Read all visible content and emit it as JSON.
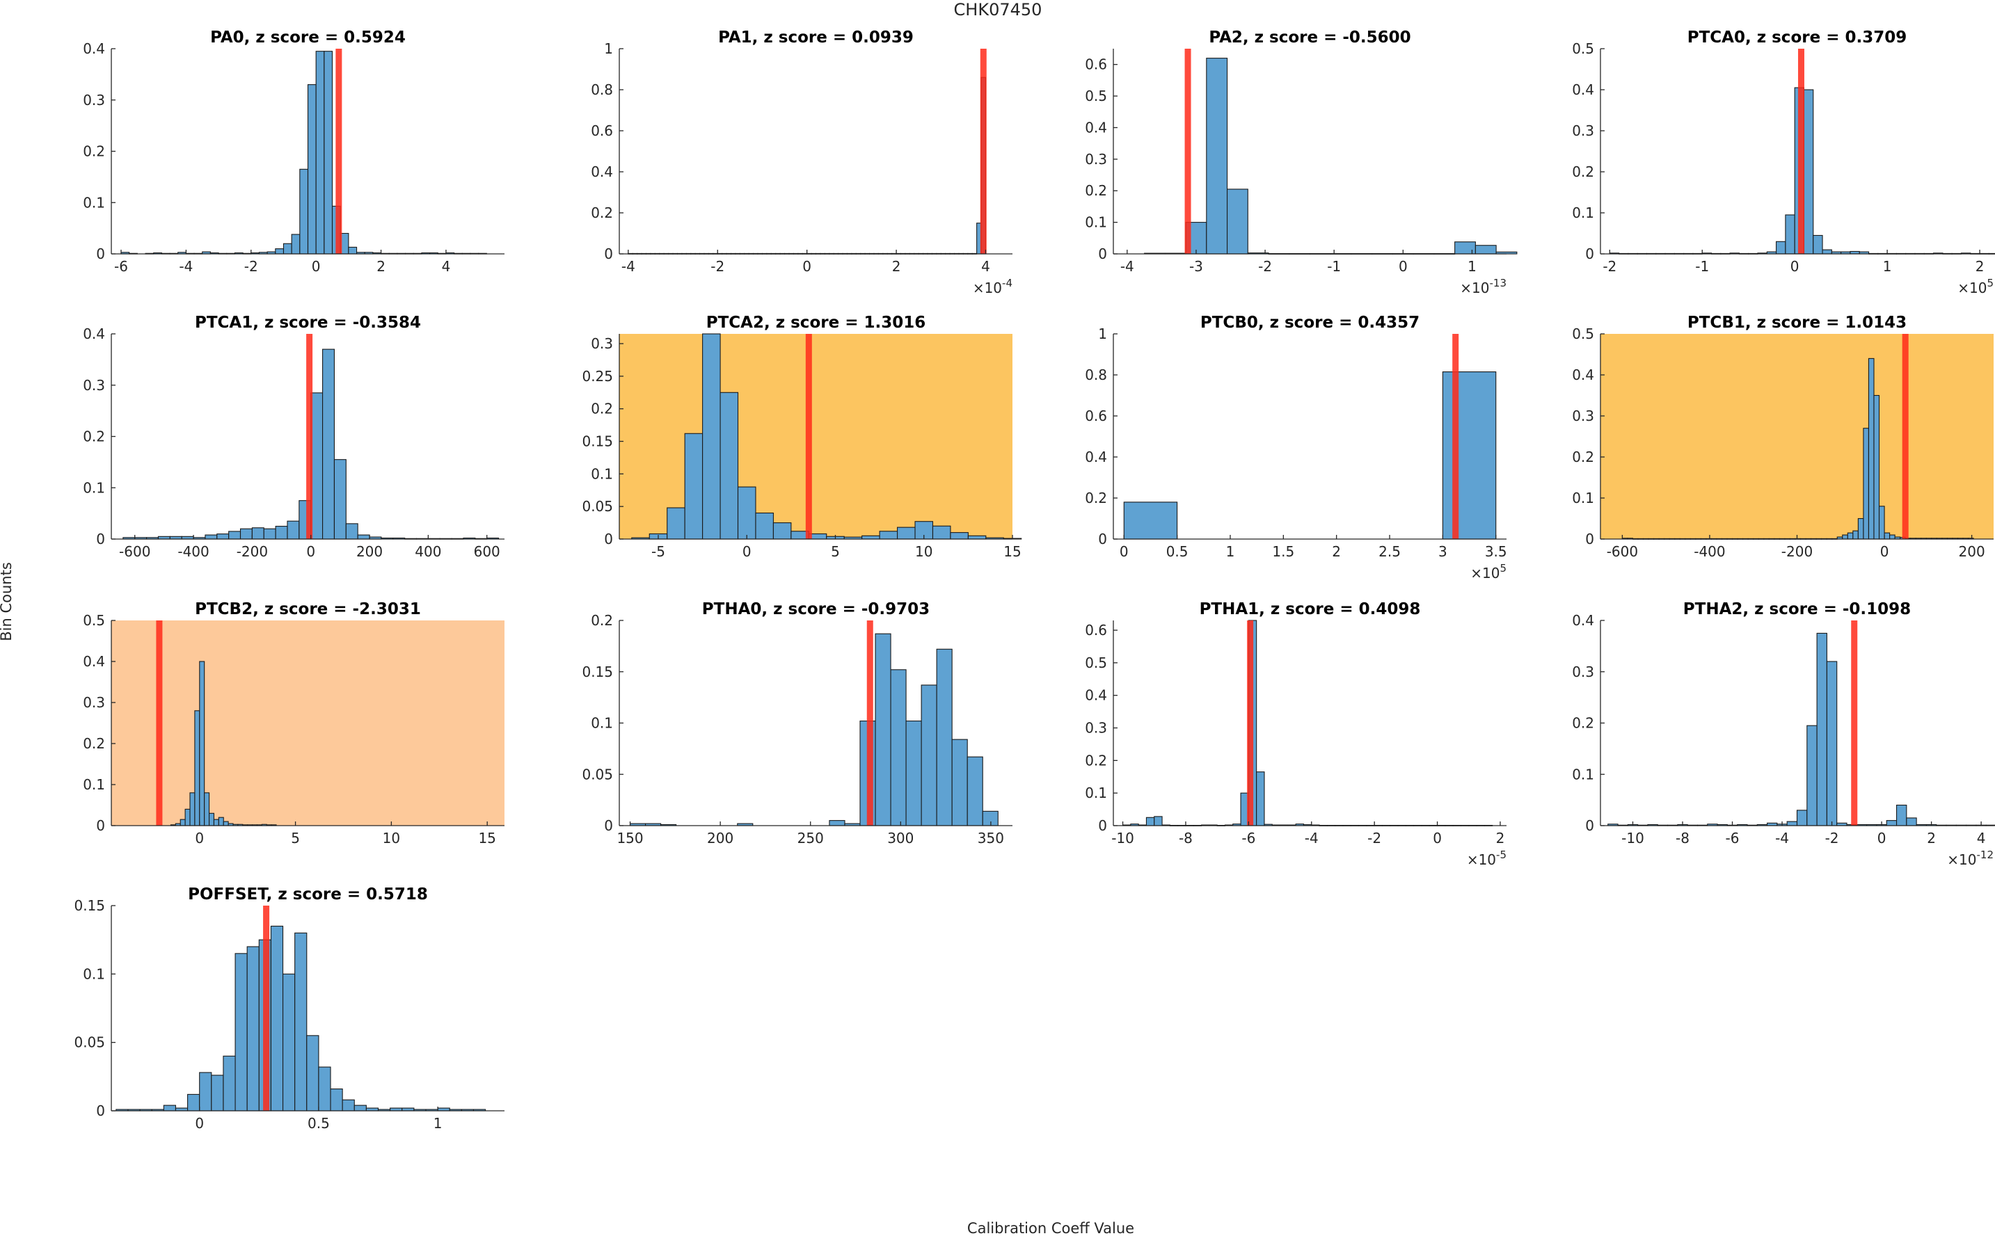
{
  "figure": {
    "title": "CHK07450",
    "ylabel": "Bin Counts",
    "xlabel": "Calibration Coeff Value"
  },
  "colors": {
    "bar": "#5fa2d2",
    "bar_edge": "#1a1a1a",
    "marker": "#ff2a1a",
    "flag_warn": "#fcc560",
    "flag_alert": "#fdc99a"
  },
  "chart_data": [
    {
      "type": "bar",
      "title": "PA0, z score = 0.5924",
      "xlim": [
        -6.3,
        5.8
      ],
      "ylim": [
        0,
        0.4
      ],
      "xticks": [
        -6,
        -4,
        -2,
        0,
        2,
        4
      ],
      "xtick_labels": [
        "-6",
        "-4",
        "-2",
        "0",
        "2",
        "4"
      ],
      "yticks": [
        0,
        0.1,
        0.2,
        0.3,
        0.4
      ],
      "ytick_labels": [
        "0",
        "0.1",
        "0.2",
        "0.3",
        "0.4"
      ],
      "bin_start": -6.0,
      "bin_width": 0.25,
      "values": [
        0.003,
        0.001,
        0,
        0.001,
        0.002,
        0.001,
        0.001,
        0.003,
        0.001,
        0.001,
        0.004,
        0.002,
        0.001,
        0.001,
        0.002,
        0.001,
        0.002,
        0.003,
        0.004,
        0.01,
        0.02,
        0.038,
        0.165,
        0.33,
        0.395,
        0.395,
        0.093,
        0.04,
        0.013,
        0.003,
        0.003,
        0.002,
        0.001,
        0.001,
        0.001,
        0.001,
        0.001,
        0.002,
        0.002,
        0.001,
        0.002,
        0.001,
        0.001,
        0.001,
        0.001
      ],
      "marker": 0.7,
      "highlight": null,
      "exponent": ""
    },
    {
      "type": "bar",
      "title": "PA1, z score = 0.0939",
      "xlim": [
        -4.2,
        4.6
      ],
      "ylim": [
        0,
        1
      ],
      "xticks": [
        -4,
        -2,
        0,
        2,
        4
      ],
      "xtick_labels": [
        "-4",
        "-2",
        "0",
        "2",
        "4"
      ],
      "yticks": [
        0,
        0.2,
        0.4,
        0.6,
        0.8,
        1
      ],
      "ytick_labels": [
        "0",
        "0.2",
        "0.4",
        "0.6",
        "0.8",
        "1"
      ],
      "bin_start": -4.0,
      "bin_width": 0.1,
      "values": [
        0.002,
        0.002,
        0.002,
        0.002,
        0.002,
        0.002,
        0.002,
        0.002,
        0.002,
        0.002,
        0.002,
        0.002,
        0.002,
        0.002,
        0.002,
        0.002,
        0.002,
        0.002,
        0.002,
        0.002,
        0.002,
        0.002,
        0.002,
        0.002,
        0.002,
        0.002,
        0.002,
        0.002,
        0.002,
        0.002,
        0.002,
        0.002,
        0.002,
        0.002,
        0.002,
        0.002,
        0.002,
        0.002,
        0.002,
        0.002,
        0.002,
        0.002,
        0.002,
        0.002,
        0.002,
        0.002,
        0.002,
        0.002,
        0.002,
        0.002,
        0.002,
        0.002,
        0.002,
        0.002,
        0.002,
        0.002,
        0.002,
        0.002,
        0.002,
        0.002,
        0.002,
        0.002,
        0.002,
        0.002,
        0.002,
        0.002,
        0.002,
        0.002,
        0.002,
        0.002,
        0.002,
        0.002,
        0.002,
        0.002,
        0.002,
        0.002,
        0.002,
        0.002,
        0.15,
        0.86
      ],
      "marker": 3.95,
      "highlight": null,
      "exponent": "-4"
    },
    {
      "type": "bar",
      "title": "PA2, z score = -0.5600",
      "xlim": [
        -4.2,
        1.5
      ],
      "ylim": [
        0,
        0.65
      ],
      "xticks": [
        -4,
        -3,
        -2,
        -1,
        0,
        1
      ],
      "xtick_labels": [
        "-4",
        "-3",
        "-2",
        "-1",
        "0",
        "1"
      ],
      "yticks": [
        0,
        0.1,
        0.2,
        0.3,
        0.4,
        0.5,
        0.6
      ],
      "ytick_labels": [
        "0",
        "0.1",
        "0.2",
        "0.3",
        "0.4",
        "0.5",
        "0.6"
      ],
      "bin_start": -3.75,
      "bin_width": 0.3,
      "values": [
        0.002,
        0.002,
        0.1,
        0.62,
        0.205,
        0.003,
        0.001,
        0.001,
        0.001,
        0.001,
        0.001,
        0.001,
        0.001,
        0.001,
        0.001,
        0.038,
        0.027,
        0.006
      ],
      "marker": -3.12,
      "highlight": null,
      "exponent": "-13"
    },
    {
      "type": "bar",
      "title": "PTCA0, z score = 0.3709",
      "xlim": [
        -2.1,
        2.15
      ],
      "ylim": [
        0,
        0.5
      ],
      "xticks": [
        -2,
        -1,
        0,
        1,
        2
      ],
      "xtick_labels": [
        "-2",
        "-1",
        "0",
        "1",
        "2"
      ],
      "yticks": [
        0,
        0.1,
        0.2,
        0.3,
        0.4,
        0.5
      ],
      "ytick_labels": [
        "0",
        "0.1",
        "0.2",
        "0.3",
        "0.4",
        "0.5"
      ],
      "bin_start": -2.0,
      "bin_width": 0.1,
      "values": [
        0.002,
        0.001,
        0.001,
        0.001,
        0.001,
        0.001,
        0.001,
        0.001,
        0.001,
        0.001,
        0.002,
        0.001,
        0.001,
        0.002,
        0.001,
        0.001,
        0.002,
        0.005,
        0.03,
        0.095,
        0.405,
        0.4,
        0.045,
        0.01,
        0.005,
        0.005,
        0.006,
        0.005,
        0.001,
        0.001,
        0.001,
        0.001,
        0.001,
        0.001,
        0.001,
        0.002,
        0.001,
        0.001,
        0.002,
        0.001,
        0.001,
        0.001
      ],
      "marker": 0.07,
      "highlight": null,
      "exponent": "5"
    },
    {
      "type": "bar",
      "title": "PTCA1, z score = -0.3584",
      "xlim": [
        -680,
        660
      ],
      "ylim": [
        0,
        0.4
      ],
      "xticks": [
        -600,
        -400,
        -200,
        0,
        200,
        400,
        600
      ],
      "xtick_labels": [
        "-600",
        "-400",
        "-200",
        "0",
        "200",
        "400",
        "600"
      ],
      "yticks": [
        0,
        0.1,
        0.2,
        0.3,
        0.4
      ],
      "ytick_labels": [
        "0",
        "0.1",
        "0.2",
        "0.3",
        "0.4"
      ],
      "bin_start": -640,
      "bin_width": 40,
      "values": [
        0.003,
        0.003,
        0.003,
        0.005,
        0.005,
        0.005,
        0.003,
        0.008,
        0.01,
        0.015,
        0.02,
        0.022,
        0.02,
        0.025,
        0.035,
        0.075,
        0.285,
        0.37,
        0.155,
        0.03,
        0.008,
        0.004,
        0.002,
        0.002,
        0.001,
        0.001,
        0.001,
        0.001,
        0.001,
        0.002,
        0.001,
        0.002
      ],
      "marker": -5,
      "highlight": null,
      "exponent": ""
    },
    {
      "type": "bar",
      "title": "PTCA2, z score = 1.3016",
      "xlim": [
        -7.2,
        15
      ],
      "ylim": [
        0,
        0.315
      ],
      "xticks": [
        -5,
        0,
        5,
        10,
        15
      ],
      "xtick_labels": [
        "-5",
        "0",
        "5",
        "10",
        "15"
      ],
      "yticks": [
        0,
        0.05,
        0.1,
        0.15,
        0.2,
        0.25,
        0.3
      ],
      "ytick_labels": [
        "0",
        "0.05",
        "0.1",
        "0.15",
        "0.2",
        "0.25",
        "0.3"
      ],
      "bin_start": -6.5,
      "bin_width": 1.0,
      "values": [
        0.002,
        0.008,
        0.048,
        0.162,
        0.315,
        0.225,
        0.08,
        0.04,
        0.025,
        0.012,
        0.008,
        0.004,
        0.003,
        0.005,
        0.012,
        0.018,
        0.027,
        0.02,
        0.01,
        0.005,
        0.002,
        0.001
      ],
      "marker": 3.5,
      "highlight": "warn",
      "exponent": ""
    },
    {
      "type": "bar",
      "title": "PTCB0, z score = 0.4357",
      "xlim": [
        -0.1,
        3.6
      ],
      "ylim": [
        0,
        1
      ],
      "xticks": [
        0,
        0.5,
        1,
        1.5,
        2,
        2.5,
        3,
        3.5
      ],
      "xtick_labels": [
        "0",
        "0.5",
        "1",
        "1.5",
        "2",
        "2.5",
        "3",
        "3.5"
      ],
      "yticks": [
        0,
        0.2,
        0.4,
        0.6,
        0.8,
        1
      ],
      "ytick_labels": [
        "0",
        "0.2",
        "0.4",
        "0.6",
        "0.8",
        "1"
      ],
      "bin_start": 0,
      "bin_width": 0.5,
      "values": [
        0.18,
        0,
        0,
        0,
        0,
        0,
        0.815
      ],
      "marker": 3.12,
      "highlight": null,
      "exponent": "5"
    },
    {
      "type": "bar",
      "title": "PTCB1, z score = 1.0143",
      "xlim": [
        -650,
        250
      ],
      "ylim": [
        0,
        0.5
      ],
      "xticks": [
        -600,
        -400,
        -200,
        0,
        200
      ],
      "xtick_labels": [
        "-600",
        "-400",
        "-200",
        "0",
        "200"
      ],
      "yticks": [
        0,
        0.1,
        0.2,
        0.3,
        0.4,
        0.5
      ],
      "ytick_labels": [
        "0",
        "0.1",
        "0.2",
        "0.3",
        "0.4",
        "0.5"
      ],
      "bin_start": -600,
      "bin_width": 12,
      "values": [
        0.002,
        0.002,
        0.001,
        0.001,
        0.001,
        0.001,
        0.001,
        0.001,
        0.001,
        0.001,
        0.001,
        0.001,
        0.001,
        0.001,
        0.001,
        0.001,
        0.001,
        0.001,
        0.001,
        0.001,
        0.001,
        0.001,
        0.001,
        0.001,
        0.001,
        0.001,
        0.001,
        0.001,
        0.001,
        0.001,
        0.001,
        0.001,
        0.001,
        0.001,
        0.001,
        0.001,
        0.001,
        0.001,
        0.001,
        0.001,
        0.001,
        0.005,
        0.01,
        0.015,
        0.02,
        0.05,
        0.27,
        0.44,
        0.35,
        0.08,
        0.015,
        0.01,
        0.005,
        0.004,
        0.002,
        0.002,
        0.002,
        0.002,
        0.002,
        0.002,
        0.002,
        0.002,
        0.002,
        0.002,
        0.002,
        0.002,
        0.002
      ],
      "marker": 48,
      "highlight": "warn",
      "exponent": ""
    },
    {
      "type": "bar",
      "title": "PTCB2, z score = -2.3031",
      "xlim": [
        -4.6,
        15.9
      ],
      "ylim": [
        0,
        0.5
      ],
      "xticks": [
        0,
        5,
        10,
        15
      ],
      "xtick_labels": [
        "0",
        "5",
        "10",
        "15"
      ],
      "yticks": [
        0,
        0.1,
        0.2,
        0.3,
        0.4,
        0.5
      ],
      "ytick_labels": [
        "0",
        "0.1",
        "0.2",
        "0.3",
        "0.4",
        "0.5"
      ],
      "bin_start": -1.5,
      "bin_width": 0.25,
      "values": [
        0.002,
        0.005,
        0.015,
        0.04,
        0.08,
        0.28,
        0.4,
        0.08,
        0.03,
        0.015,
        0.02,
        0.01,
        0.005,
        0.003,
        0.003,
        0.002,
        0.002,
        0.002,
        0.002,
        0.003,
        0.002,
        0.002
      ],
      "marker": -2.1,
      "highlight": "alert",
      "exponent": ""
    },
    {
      "type": "bar",
      "title": "PTHA0, z score = -0.9703",
      "xlim": [
        144,
        362
      ],
      "ylim": [
        0,
        0.2
      ],
      "xticks": [
        150,
        200,
        250,
        300,
        350
      ],
      "xtick_labels": [
        "150",
        "200",
        "250",
        "300",
        "350"
      ],
      "yticks": [
        0,
        0.05,
        0.1,
        0.15,
        0.2
      ],
      "ytick_labels": [
        "0",
        "0.05",
        "0.1",
        "0.15",
        "0.2"
      ],
      "bin_start": 150,
      "bin_width": 8.5,
      "values": [
        0.002,
        0.002,
        0.001,
        0,
        0,
        0,
        0,
        0.002,
        0,
        0,
        0,
        0,
        0,
        0.005,
        0.002,
        0.102,
        0.187,
        0.152,
        0.102,
        0.137,
        0.172,
        0.084,
        0.067,
        0.014
      ],
      "marker": 283,
      "highlight": null,
      "exponent": ""
    },
    {
      "type": "bar",
      "title": "PTHA1, z score = 0.4098",
      "xlim": [
        -10.3,
        2.2
      ],
      "ylim": [
        0,
        0.63
      ],
      "xticks": [
        -10,
        -8,
        -6,
        -4,
        -2,
        0,
        2
      ],
      "xtick_labels": [
        "-10",
        "-8",
        "-6",
        "-4",
        "-2",
        "0",
        "2"
      ],
      "yticks": [
        0,
        0.1,
        0.2,
        0.3,
        0.4,
        0.5,
        0.6
      ],
      "ytick_labels": [
        "0",
        "0.1",
        "0.2",
        "0.3",
        "0.4",
        "0.5",
        "0.6"
      ],
      "bin_start": -10.0,
      "bin_width": 0.25,
      "values": [
        0.002,
        0.005,
        0.002,
        0.025,
        0.028,
        0.002,
        0.001,
        0.001,
        0.001,
        0.001,
        0.002,
        0.002,
        0.001,
        0.002,
        0.005,
        0.1,
        0.63,
        0.165,
        0.004,
        0.002,
        0.002,
        0.002,
        0.005,
        0.003,
        0.002,
        0.001,
        0.001,
        0.001,
        0.001,
        0.001,
        0.001,
        0.001,
        0.001,
        0.001,
        0.001,
        0.001,
        0.001,
        0.001,
        0.001,
        0.001,
        0.001,
        0.001,
        0.001,
        0.001,
        0.001,
        0.001,
        0.001
      ],
      "marker": -5.95,
      "highlight": null,
      "exponent": "-5"
    },
    {
      "type": "bar",
      "title": "PTHA2, z score = -0.1098",
      "xlim": [
        -11.3,
        4.5
      ],
      "ylim": [
        0,
        0.4
      ],
      "xticks": [
        -10,
        -8,
        -6,
        -4,
        -2,
        0,
        2,
        4
      ],
      "xtick_labels": [
        "-10",
        "-8",
        "-6",
        "-4",
        "-2",
        "0",
        "2",
        "4"
      ],
      "yticks": [
        0,
        0.1,
        0.2,
        0.3,
        0.4
      ],
      "ytick_labels": [
        "0",
        "0.1",
        "0.2",
        "0.3",
        "0.4"
      ],
      "bin_start": -11.0,
      "bin_width": 0.4,
      "values": [
        0.003,
        0.001,
        0.002,
        0.001,
        0.002,
        0.001,
        0.001,
        0.002,
        0.001,
        0.001,
        0.003,
        0.002,
        0.001,
        0.002,
        0.001,
        0.002,
        0.005,
        0.003,
        0.008,
        0.03,
        0.195,
        0.375,
        0.32,
        0.005,
        0.002,
        0.002,
        0.002,
        0.002,
        0.01,
        0.04,
        0.015,
        0.002,
        0.002,
        0.001,
        0.001,
        0.001,
        0.001,
        0.001,
        0.001
      ],
      "marker": -1.1,
      "highlight": null,
      "exponent": "-12"
    },
    {
      "type": "bar",
      "title": "POFFSET, z score = 0.5718",
      "xlim": [
        -0.37,
        1.28
      ],
      "ylim": [
        0,
        0.15
      ],
      "xticks": [
        0,
        0.5,
        1
      ],
      "xtick_labels": [
        "0",
        "0.5",
        "1"
      ],
      "yticks": [
        0,
        0.05,
        0.1,
        0.15
      ],
      "ytick_labels": [
        "0",
        "0.05",
        "0.1",
        "0.15"
      ],
      "bin_start": -0.35,
      "bin_width": 0.05,
      "values": [
        0.001,
        0.001,
        0.001,
        0.001,
        0.004,
        0.002,
        0.012,
        0.028,
        0.026,
        0.04,
        0.115,
        0.12,
        0.125,
        0.135,
        0.1,
        0.13,
        0.055,
        0.032,
        0.016,
        0.008,
        0.004,
        0.002,
        0.001,
        0.002,
        0.002,
        0.001,
        0.001,
        0.002,
        0.001,
        0.001,
        0.001
      ],
      "marker": 0.28,
      "highlight": null,
      "exponent": ""
    }
  ]
}
